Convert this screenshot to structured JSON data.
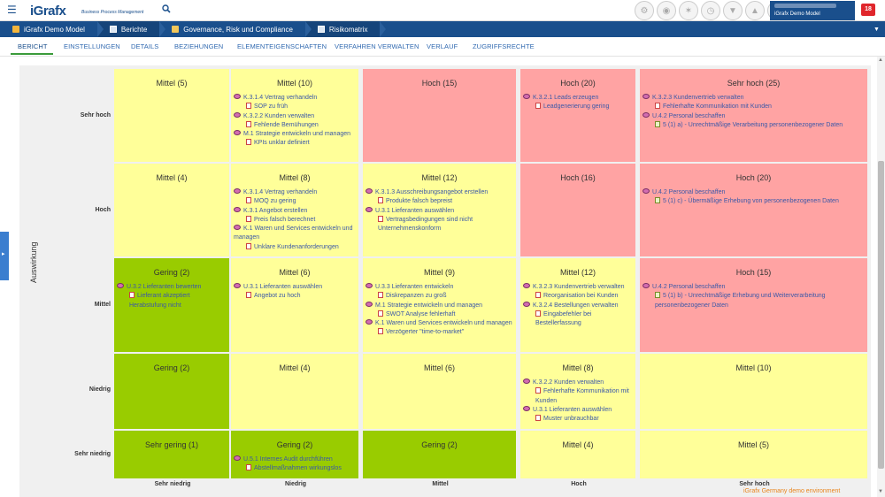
{
  "header": {
    "logo": "iGrafx",
    "logo_sub": "Business Process Management",
    "user_name": "iGrafx Demo Model",
    "notifications": "18"
  },
  "breadcrumb": [
    "iGrafx Demo Model",
    "Berichte",
    "Governance, Risk und Compliance",
    "Risikomatrix"
  ],
  "tabs": [
    "BERICHT",
    "EINSTELLUNGEN",
    "DETAILS",
    "BEZIEHUNGEN",
    "ELEMENTEIGENSCHAFTEN",
    "VERFAHREN VERWALTEN",
    "VERLAUF",
    "ZUGRIFFSRECHTE"
  ],
  "matrix": {
    "y_axis_label": "Auswirkung",
    "rows": [
      "Sehr hoch",
      "Hoch",
      "Mittel",
      "Niedrig",
      "Sehr niedrig"
    ],
    "cols": [
      "Sehr niedrig",
      "Niedrig",
      "Mittel",
      "Hoch",
      "Sehr hoch"
    ],
    "colors": {
      "yellow": "#ffff99",
      "red": "#ffa3a3",
      "green": "#99cc00"
    },
    "cells": [
      [
        {
          "title": "Mittel (5)",
          "color": "yellow",
          "entries": []
        },
        {
          "title": "Mittel (10)",
          "color": "yellow",
          "entries": [
            {
              "type": "proc",
              "text": "K.3.1.4 Vertrag verhandeln"
            },
            {
              "type": "risk",
              "text": "SOP zu früh"
            },
            {
              "type": "proc",
              "text": "K.3.2.2 Kunden verwalten"
            },
            {
              "type": "risk",
              "text": "Fehlende Bemühungen"
            },
            {
              "type": "proc",
              "text": "M.1 Strategie entwickeln und managen"
            },
            {
              "type": "risk",
              "text": "KPIs unklar definiert"
            }
          ]
        },
        {
          "title": "Hoch (15)",
          "color": "red",
          "entries": []
        },
        {
          "title": "Hoch (20)",
          "color": "red",
          "entries": [
            {
              "type": "proc",
              "text": "K.3.2.1 Leads erzeugen"
            },
            {
              "type": "risk",
              "text": "Leadgenerierung gering"
            }
          ]
        },
        {
          "title": "Sehr hoch (25)",
          "color": "red",
          "entries": [
            {
              "type": "proc",
              "text": "K.3.2.3 Kundenvertrieb verwalten"
            },
            {
              "type": "risk",
              "text": "Fehlerhafte Kommunikation mit Kunden"
            },
            {
              "type": "proc",
              "text": "U.4.2 Personal beschaffen"
            },
            {
              "type": "law",
              "text": "5 (1) a) - Unrechtmäßige Verarbeitung personenbezogener Daten"
            }
          ]
        }
      ],
      [
        {
          "title": "Mittel (4)",
          "color": "yellow",
          "entries": []
        },
        {
          "title": "Mittel (8)",
          "color": "yellow",
          "entries": [
            {
              "type": "proc",
              "text": "K.3.1.4 Vertrag verhandeln"
            },
            {
              "type": "risk",
              "text": "MOQ zu gering"
            },
            {
              "type": "proc",
              "text": "K.3.1 Angebot erstellen"
            },
            {
              "type": "risk",
              "text": "Preis falsch berechnet"
            },
            {
              "type": "proc",
              "text": "K.1 Waren und Services entwickeln und managen"
            },
            {
              "type": "risk",
              "text": "Unklare Kundenanforderungen"
            }
          ]
        },
        {
          "title": "Mittel (12)",
          "color": "yellow",
          "entries": [
            {
              "type": "proc",
              "text": "K.3.1.3 Ausschreibungsangebot erstellen"
            },
            {
              "type": "risk",
              "text": "Produkte falsch bepreist"
            },
            {
              "type": "proc",
              "text": "U.3.1 Lieferanten auswählen"
            },
            {
              "type": "risk",
              "text": "Vertragsbedingungen sind nicht Unternehmenskonform"
            }
          ]
        },
        {
          "title": "Hoch (16)",
          "color": "red",
          "entries": []
        },
        {
          "title": "Hoch (20)",
          "color": "red",
          "entries": [
            {
              "type": "proc",
              "text": "U.4.2 Personal beschaffen"
            },
            {
              "type": "law",
              "text": "5 (1) c) - Übermäßige Erhebung von personenbezogenen Daten"
            }
          ]
        }
      ],
      [
        {
          "title": "Gering (2)",
          "color": "green",
          "entries": [
            {
              "type": "proc",
              "text": "U.3.2 Lieferanten bewerten"
            },
            {
              "type": "risk",
              "text": "Lieferant akzeptiert Herabstufung nicht"
            }
          ]
        },
        {
          "title": "Mittel (6)",
          "color": "yellow",
          "entries": [
            {
              "type": "proc",
              "text": "U.3.1 Lieferanten auswählen"
            },
            {
              "type": "risk",
              "text": "Angebot zu hoch"
            }
          ]
        },
        {
          "title": "Mittel (9)",
          "color": "yellow",
          "entries": [
            {
              "type": "proc",
              "text": "U.3.3 Lieferanten entwickeln"
            },
            {
              "type": "risk",
              "text": "Diskrepanzen zu groß"
            },
            {
              "type": "proc",
              "text": "M.1 Strategie entwickeln und managen"
            },
            {
              "type": "risk",
              "text": "SWOT Analyse fehlerhaft"
            },
            {
              "type": "proc",
              "text": "K.1 Waren und Services entwickeln und managen"
            },
            {
              "type": "risk",
              "text": "Verzögerter \"time-to-market\""
            }
          ]
        },
        {
          "title": "Mittel (12)",
          "color": "yellow",
          "entries": [
            {
              "type": "proc",
              "text": "K.3.2.3 Kundenvertrieb verwalten"
            },
            {
              "type": "risk",
              "text": "Reorganisation bei Kunden"
            },
            {
              "type": "proc",
              "text": "K.3.2.4 Bestellungen verwalten"
            },
            {
              "type": "risk",
              "text": "Eingabefehler bei Bestellerfassung"
            }
          ]
        },
        {
          "title": "Hoch (15)",
          "color": "red",
          "entries": [
            {
              "type": "proc",
              "text": "U.4.2 Personal beschaffen"
            },
            {
              "type": "law",
              "text": "5 (1) b) - Unrechtmäßige Erhebung und Weiterverarbeitung personenbezogener Daten"
            }
          ]
        }
      ],
      [
        {
          "title": "Gering (2)",
          "color": "green",
          "entries": []
        },
        {
          "title": "Mittel (4)",
          "color": "yellow",
          "entries": []
        },
        {
          "title": "Mittel (6)",
          "color": "yellow",
          "entries": []
        },
        {
          "title": "Mittel (8)",
          "color": "yellow",
          "entries": [
            {
              "type": "proc",
              "text": "K.3.2.2 Kunden verwalten"
            },
            {
              "type": "risk",
              "text": "Fehlerhafte Kommunikation mit Kunden"
            },
            {
              "type": "proc",
              "text": "U.3.1 Lieferanten auswählen"
            },
            {
              "type": "risk",
              "text": "Muster unbrauchbar"
            }
          ]
        },
        {
          "title": "Mittel (10)",
          "color": "yellow",
          "entries": []
        }
      ],
      [
        {
          "title": "Sehr gering (1)",
          "color": "green",
          "entries": []
        },
        {
          "title": "Gering (2)",
          "color": "green",
          "entries": [
            {
              "type": "proc",
              "text": "U.5.1 Internes Audit durchführen"
            },
            {
              "type": "risk",
              "text": "Abstellmaßnahmen wirkungslos"
            }
          ]
        },
        {
          "title": "Gering (2)",
          "color": "green",
          "entries": []
        },
        {
          "title": "Mittel (4)",
          "color": "yellow",
          "entries": []
        },
        {
          "title": "Mittel (5)",
          "color": "yellow",
          "entries": []
        }
      ]
    ]
  },
  "footer_note": "iGrafx Germany demo environment"
}
